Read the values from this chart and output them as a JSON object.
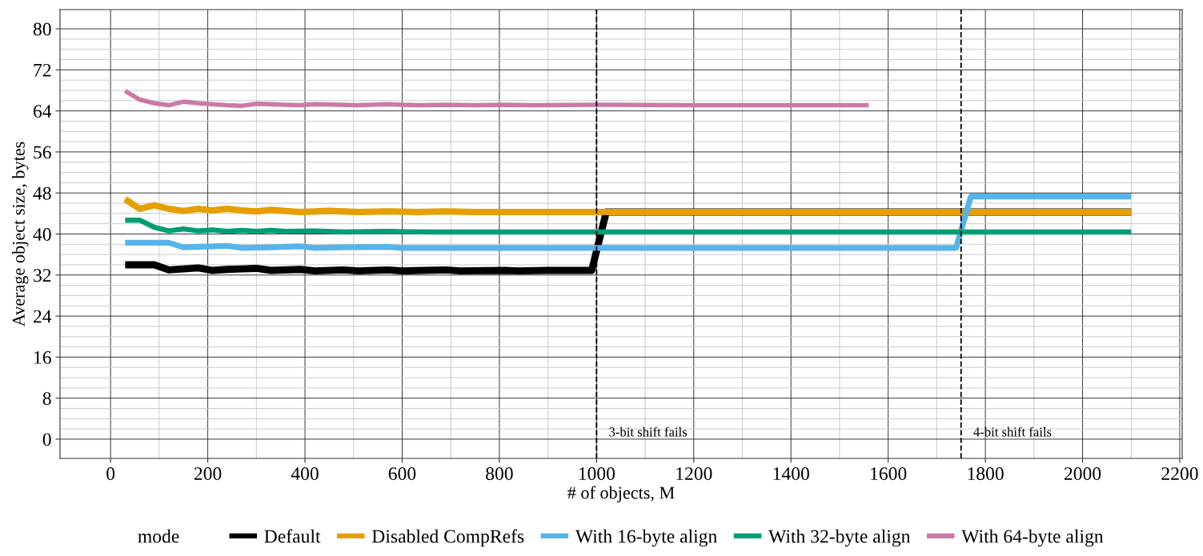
{
  "chart_data": {
    "type": "line",
    "xlabel": "# of objects, M",
    "ylabel": "Average object size, bytes",
    "legend_title": "mode",
    "xlim": [
      -104,
      2205
    ],
    "ylim": [
      -3.75,
      83.75
    ],
    "xticks": [
      0,
      200,
      400,
      600,
      800,
      1000,
      1200,
      1400,
      1600,
      1800,
      2000,
      2200
    ],
    "yticks": [
      0,
      8,
      16,
      24,
      32,
      40,
      48,
      56,
      64,
      72,
      80
    ],
    "grid": true,
    "legend": "bottom",
    "line_style": "solid",
    "marker": "none",
    "series": [
      {
        "name": "Default",
        "color": "#000000",
        "x": [
          30,
          60,
          90,
          120,
          150,
          180,
          210,
          240,
          270,
          300,
          330,
          390,
          420,
          480,
          510,
          570,
          600,
          690,
          720,
          810,
          840,
          900,
          990,
          1020,
          2100
        ],
        "values": [
          34.0,
          34.0,
          34.0,
          33.0,
          33.2,
          33.4,
          32.9,
          33.1,
          33.2,
          33.3,
          32.9,
          33.1,
          32.8,
          33.0,
          32.8,
          33.0,
          32.8,
          33.0,
          32.8,
          32.9,
          32.8,
          32.9,
          32.9,
          44.3,
          44.3
        ]
      },
      {
        "name": "Disabled CompRefs",
        "color": "#e69f00",
        "x": [
          30,
          60,
          90,
          120,
          150,
          180,
          210,
          240,
          270,
          300,
          330,
          360,
          390,
          450,
          510,
          570,
          630,
          690,
          750,
          810,
          900,
          1000,
          2100
        ],
        "values": [
          46.8,
          44.9,
          45.6,
          44.9,
          44.5,
          44.9,
          44.6,
          44.9,
          44.6,
          44.4,
          44.7,
          44.5,
          44.3,
          44.5,
          44.3,
          44.4,
          44.3,
          44.4,
          44.3,
          44.3,
          44.3,
          44.3,
          44.3
        ]
      },
      {
        "name": "With 16-byte align",
        "color": "#56b4e9",
        "x": [
          30,
          60,
          90,
          120,
          150,
          180,
          240,
          270,
          330,
          390,
          420,
          480,
          570,
          600,
          660,
          1740,
          1770,
          2100
        ],
        "values": [
          38.3,
          38.3,
          38.3,
          38.3,
          37.4,
          37.5,
          37.7,
          37.3,
          37.4,
          37.6,
          37.3,
          37.4,
          37.5,
          37.3,
          37.3,
          37.3,
          47.3,
          47.3
        ]
      },
      {
        "name": "With 32-byte align",
        "color": "#009e73",
        "x": [
          30,
          60,
          90,
          120,
          150,
          180,
          210,
          240,
          270,
          300,
          330,
          360,
          420,
          480,
          570,
          660,
          750,
          1000,
          2100
        ],
        "values": [
          42.7,
          42.7,
          41.3,
          40.6,
          41.0,
          40.6,
          40.8,
          40.5,
          40.7,
          40.5,
          40.7,
          40.5,
          40.6,
          40.4,
          40.5,
          40.4,
          40.4,
          40.4,
          40.4
        ]
      },
      {
        "name": "With 64-byte align",
        "color": "#cc79a7",
        "x": [
          30,
          60,
          90,
          120,
          150,
          180,
          210,
          240,
          270,
          300,
          360,
          390,
          420,
          510,
          570,
          630,
          690,
          750,
          810,
          870,
          990,
          1200,
          1560
        ],
        "values": [
          67.9,
          66.2,
          65.5,
          65.1,
          65.8,
          65.5,
          65.3,
          65.1,
          65.0,
          65.4,
          65.2,
          65.1,
          65.3,
          65.1,
          65.3,
          65.1,
          65.2,
          65.1,
          65.2,
          65.1,
          65.2,
          65.1,
          65.1
        ]
      }
    ],
    "ref_lines": [
      {
        "axis": "x",
        "value": 1000,
        "label": "3-bit shift fails",
        "color": "#000000",
        "line_style": "dashed"
      },
      {
        "axis": "x",
        "value": 1750,
        "label": "4-bit shift fails",
        "color": "#000000",
        "line_style": "dashed"
      }
    ]
  }
}
